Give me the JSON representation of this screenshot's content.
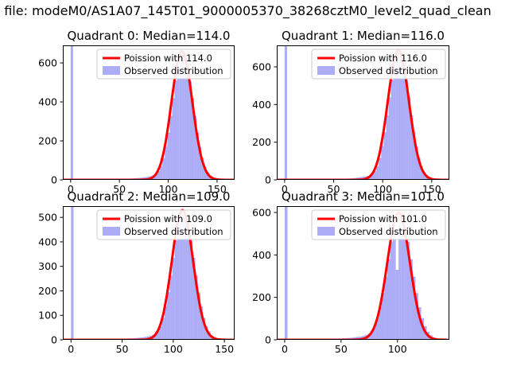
{
  "figure": {
    "title": "n file: modeM0/AS1A07_145T01_9000005370_38268cztM0_level2_quad_clean",
    "background": "#ffffff"
  },
  "colors": {
    "hist_fill": "#6a6af0",
    "hist_opacity": 0.55,
    "curve": "#ff0000",
    "axes": "#000000",
    "legend_border": "#cccccc",
    "legend_bg": "#ffffff"
  },
  "chart_data": [
    {
      "type": "bar",
      "title": "Quadrant 0: Median=114.0",
      "median": 114.0,
      "legend": [
        "Poission with 114.0",
        "Observed distribution"
      ],
      "xlim": [
        -8,
        168
      ],
      "ylim": [
        0,
        690
      ],
      "xticks": [
        0,
        50,
        100,
        150
      ],
      "yticks": [
        0,
        200,
        400,
        600
      ],
      "bin_width": 2.5,
      "hist_start": 54,
      "counts": [
        4,
        5,
        6,
        7,
        8,
        9,
        10,
        11,
        13,
        15,
        17,
        20,
        25,
        32,
        45,
        70,
        112,
        170,
        242,
        328,
        419,
        508,
        582,
        632,
        650,
        632,
        582,
        508,
        419,
        328,
        242,
        170,
        112,
        70,
        42,
        23,
        12,
        6,
        3,
        1
      ],
      "zero_spike": {
        "x": 0,
        "clipped": true
      },
      "curve_peak": 660
    },
    {
      "type": "bar",
      "title": "Quadrant 1: Median=116.0",
      "median": 116.0,
      "legend": [
        "Poission with 116.0",
        "Observed distribution"
      ],
      "xlim": [
        -8,
        168
      ],
      "ylim": [
        0,
        714
      ],
      "xticks": [
        0,
        50,
        100,
        150
      ],
      "yticks": [
        0,
        200,
        400,
        600
      ],
      "bin_width": 2.5,
      "hist_start": 56,
      "counts": [
        4,
        5,
        6,
        7,
        8,
        9,
        10,
        12,
        14,
        16,
        18,
        21,
        26,
        33,
        47,
        73,
        117,
        178,
        253,
        343,
        438,
        531,
        609,
        661,
        680,
        661,
        609,
        531,
        438,
        343,
        253,
        178,
        117,
        73,
        44,
        24,
        13,
        6,
        3,
        1
      ],
      "zero_spike": {
        "x": 0,
        "clipped": true
      },
      "curve_peak": 690
    },
    {
      "type": "bar",
      "title": "Quadrant 2: Median=109.0",
      "median": 109.0,
      "legend": [
        "Poission with 109.0",
        "Observed distribution"
      ],
      "xlim": [
        -8,
        160
      ],
      "ylim": [
        0,
        546
      ],
      "xticks": [
        0,
        50,
        100,
        150
      ],
      "yticks": [
        0,
        100,
        200,
        300,
        400,
        500
      ],
      "bin_width": 2.5,
      "hist_start": 49,
      "counts": [
        3,
        4,
        5,
        6,
        6,
        7,
        8,
        9,
        10,
        12,
        14,
        16,
        20,
        26,
        36,
        56,
        90,
        136,
        194,
        262,
        335,
        406,
        466,
        506,
        520,
        506,
        466,
        406,
        335,
        262,
        194,
        136,
        90,
        56,
        34,
        18,
        10,
        5,
        2,
        1
      ],
      "zero_spike": {
        "x": 0,
        "clipped": true
      },
      "curve_peak": 530
    },
    {
      "type": "bar",
      "title": "Quadrant 3: Median=101.0",
      "median": 101.0,
      "legend": [
        "Poission with 101.0",
        "Observed distribution"
      ],
      "xlim": [
        -7,
        146
      ],
      "ylim": [
        0,
        630
      ],
      "xticks": [
        0,
        50,
        100
      ],
      "yticks": [
        0,
        200,
        400,
        600
      ],
      "bin_width": 2.5,
      "hist_start": 41,
      "counts": [
        4,
        5,
        5,
        6,
        7,
        8,
        9,
        10,
        12,
        14,
        15,
        18,
        23,
        29,
        41,
        64,
        102,
        154,
        220,
        298,
        380,
        461,
        528,
        330,
        590,
        574,
        528,
        461,
        380,
        298,
        220,
        154,
        102,
        64,
        38,
        21,
        11,
        5,
        3,
        1
      ],
      "zero_spike": {
        "x": 0,
        "clipped": true
      },
      "curve_peak": 600
    }
  ]
}
